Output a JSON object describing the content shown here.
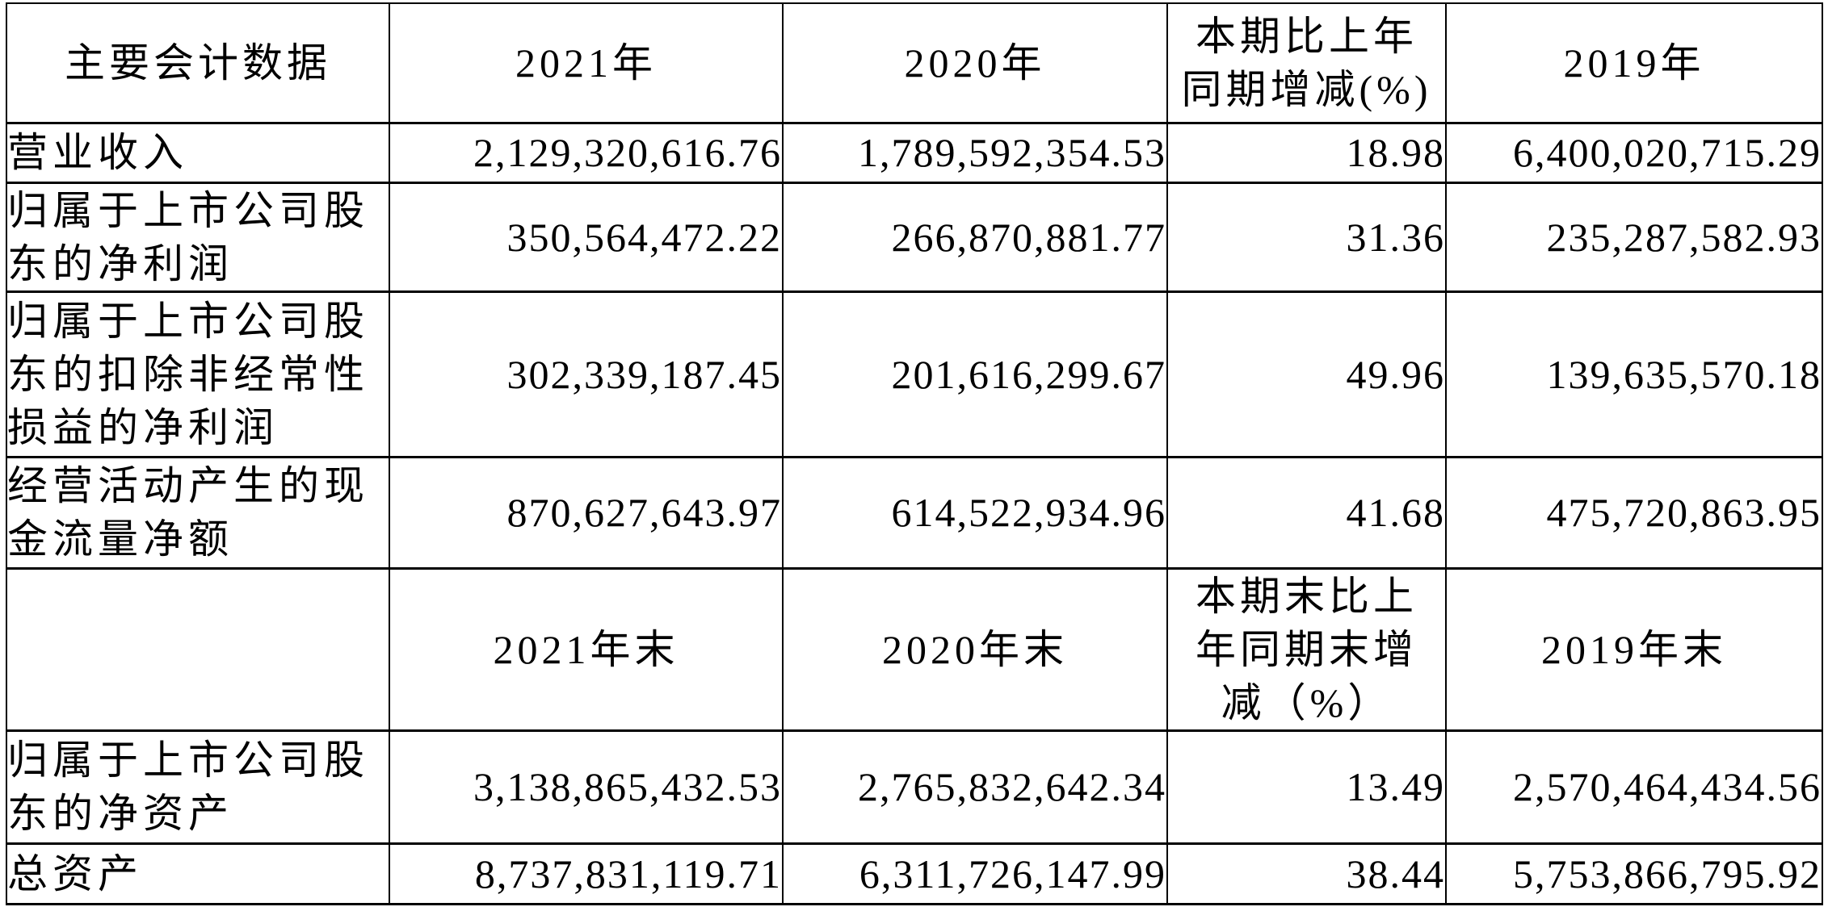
{
  "table": {
    "header_annual": {
      "col1": "主要会计数据",
      "col2": "2021年",
      "col3": "2020年",
      "col4": "本期比上年\n同期增减(%)",
      "col5": "2019年"
    },
    "rows_annual": [
      {
        "label": "营业收入",
        "v2021": "2,129,320,616.76",
        "v2020": "1,789,592,354.53",
        "change": "18.98",
        "v2019": "6,400,020,715.29"
      },
      {
        "label": "归属于上市公司股\n东的净利润",
        "v2021": "350,564,472.22",
        "v2020": "266,870,881.77",
        "change": "31.36",
        "v2019": "235,287,582.93"
      },
      {
        "label": "归属于上市公司股\n东的扣除非经常性\n损益的净利润",
        "v2021": "302,339,187.45",
        "v2020": "201,616,299.67",
        "change": "49.96",
        "v2019": "139,635,570.18"
      },
      {
        "label": "经营活动产生的现\n金流量净额",
        "v2021": "870,627,643.97",
        "v2020": "614,522,934.96",
        "change": "41.68",
        "v2019": "475,720,863.95"
      }
    ],
    "header_period_end": {
      "col1": "",
      "col2": "2021年末",
      "col3": "2020年末",
      "col4": "本期末比上\n年同期末增\n减（%）",
      "col5": "2019年末"
    },
    "rows_period_end": [
      {
        "label": "归属于上市公司股\n东的净资产",
        "v2021": "3,138,865,432.53",
        "v2020": "2,765,832,642.34",
        "change": "13.49",
        "v2019": "2,570,464,434.56"
      },
      {
        "label": "总资产",
        "v2021": "8,737,831,119.71",
        "v2020": "6,311,726,147.99",
        "change": "38.44",
        "v2019": "5,753,866,795.92"
      }
    ],
    "colors": {
      "text": "#000000",
      "background": "#ffffff",
      "border": "#000000"
    }
  }
}
